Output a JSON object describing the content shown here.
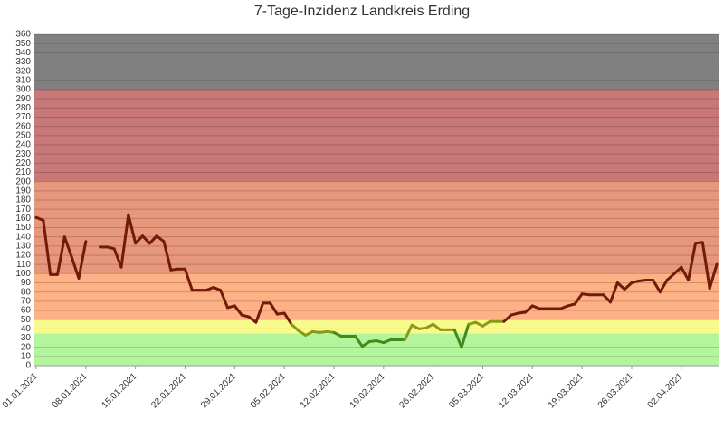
{
  "chart_data": {
    "type": "line",
    "title": "7-Tage-Inzidenz Landkreis Erding",
    "categories": [
      "01.01.2021",
      null,
      null,
      null,
      null,
      null,
      null,
      "08.01.2021",
      null,
      null,
      null,
      null,
      null,
      null,
      "15.01.2021",
      null,
      null,
      null,
      null,
      null,
      null,
      "22.01.2021",
      null,
      null,
      null,
      null,
      null,
      null,
      "29.01.2021",
      null,
      null,
      null,
      null,
      null,
      null,
      "05.02.2021",
      null,
      null,
      null,
      null,
      null,
      null,
      "12.02.2021",
      null,
      null,
      null,
      null,
      null,
      null,
      "19.02.2021",
      null,
      null,
      null,
      null,
      null,
      null,
      "26.02.2021",
      null,
      null,
      null,
      null,
      null,
      null,
      "05.03.2021",
      null,
      null,
      null,
      null,
      null,
      null,
      "12.03.2021",
      null,
      null,
      null,
      null,
      null,
      null,
      "19.03.2021",
      null,
      null,
      null,
      null,
      null,
      null,
      "26.03.2021",
      null,
      null,
      null,
      null,
      null,
      null,
      "02.04.2021",
      null,
      null,
      null,
      null,
      null
    ],
    "values": [
      161,
      158,
      99,
      99,
      140,
      118,
      95,
      135,
      null,
      129,
      129,
      127,
      107,
      164,
      133,
      141,
      133,
      141,
      135,
      104,
      105,
      105,
      82,
      82,
      82,
      85,
      82,
      63,
      65,
      55,
      53,
      47,
      68,
      68,
      56,
      57,
      45,
      38,
      33,
      37,
      36,
      37,
      36,
      32,
      32,
      32,
      21,
      26,
      27,
      25,
      28,
      28,
      28,
      44,
      40,
      41,
      45,
      39,
      39,
      39,
      20,
      45,
      47,
      43,
      48,
      48,
      48,
      55,
      57,
      58,
      65,
      62,
      62,
      62,
      62,
      65,
      67,
      78,
      77,
      77,
      77,
      69,
      90,
      83,
      90,
      92,
      93,
      93,
      80,
      93,
      100,
      107,
      93,
      133,
      134,
      84,
      110
    ],
    "bands": [
      {
        "from": 0,
        "to": 35,
        "color": "#b2f59c",
        "line_color": "#3f8c1c"
      },
      {
        "from": 35,
        "to": 50,
        "color": "#fafa8c",
        "line_color": "#8a9a18"
      },
      {
        "from": 50,
        "to": 100,
        "color": "#fdb184",
        "line_color": "#741a0a"
      },
      {
        "from": 100,
        "to": 200,
        "color": "#e7977c",
        "line_color": "#741a0a"
      },
      {
        "from": 200,
        "to": 300,
        "color": "#c97878",
        "line_color": "#741a0a"
      },
      {
        "from": 300,
        "to": 360,
        "color": "#808080",
        "line_color": "#741a0a"
      }
    ],
    "ylim": [
      0,
      360
    ],
    "yticks": [
      0,
      10,
      20,
      30,
      40,
      50,
      60,
      70,
      80,
      90,
      100,
      110,
      120,
      130,
      140,
      150,
      160,
      170,
      180,
      190,
      200,
      210,
      220,
      230,
      240,
      250,
      260,
      270,
      280,
      290,
      300,
      310,
      320,
      330,
      340,
      350,
      360
    ],
    "grid": true
  }
}
